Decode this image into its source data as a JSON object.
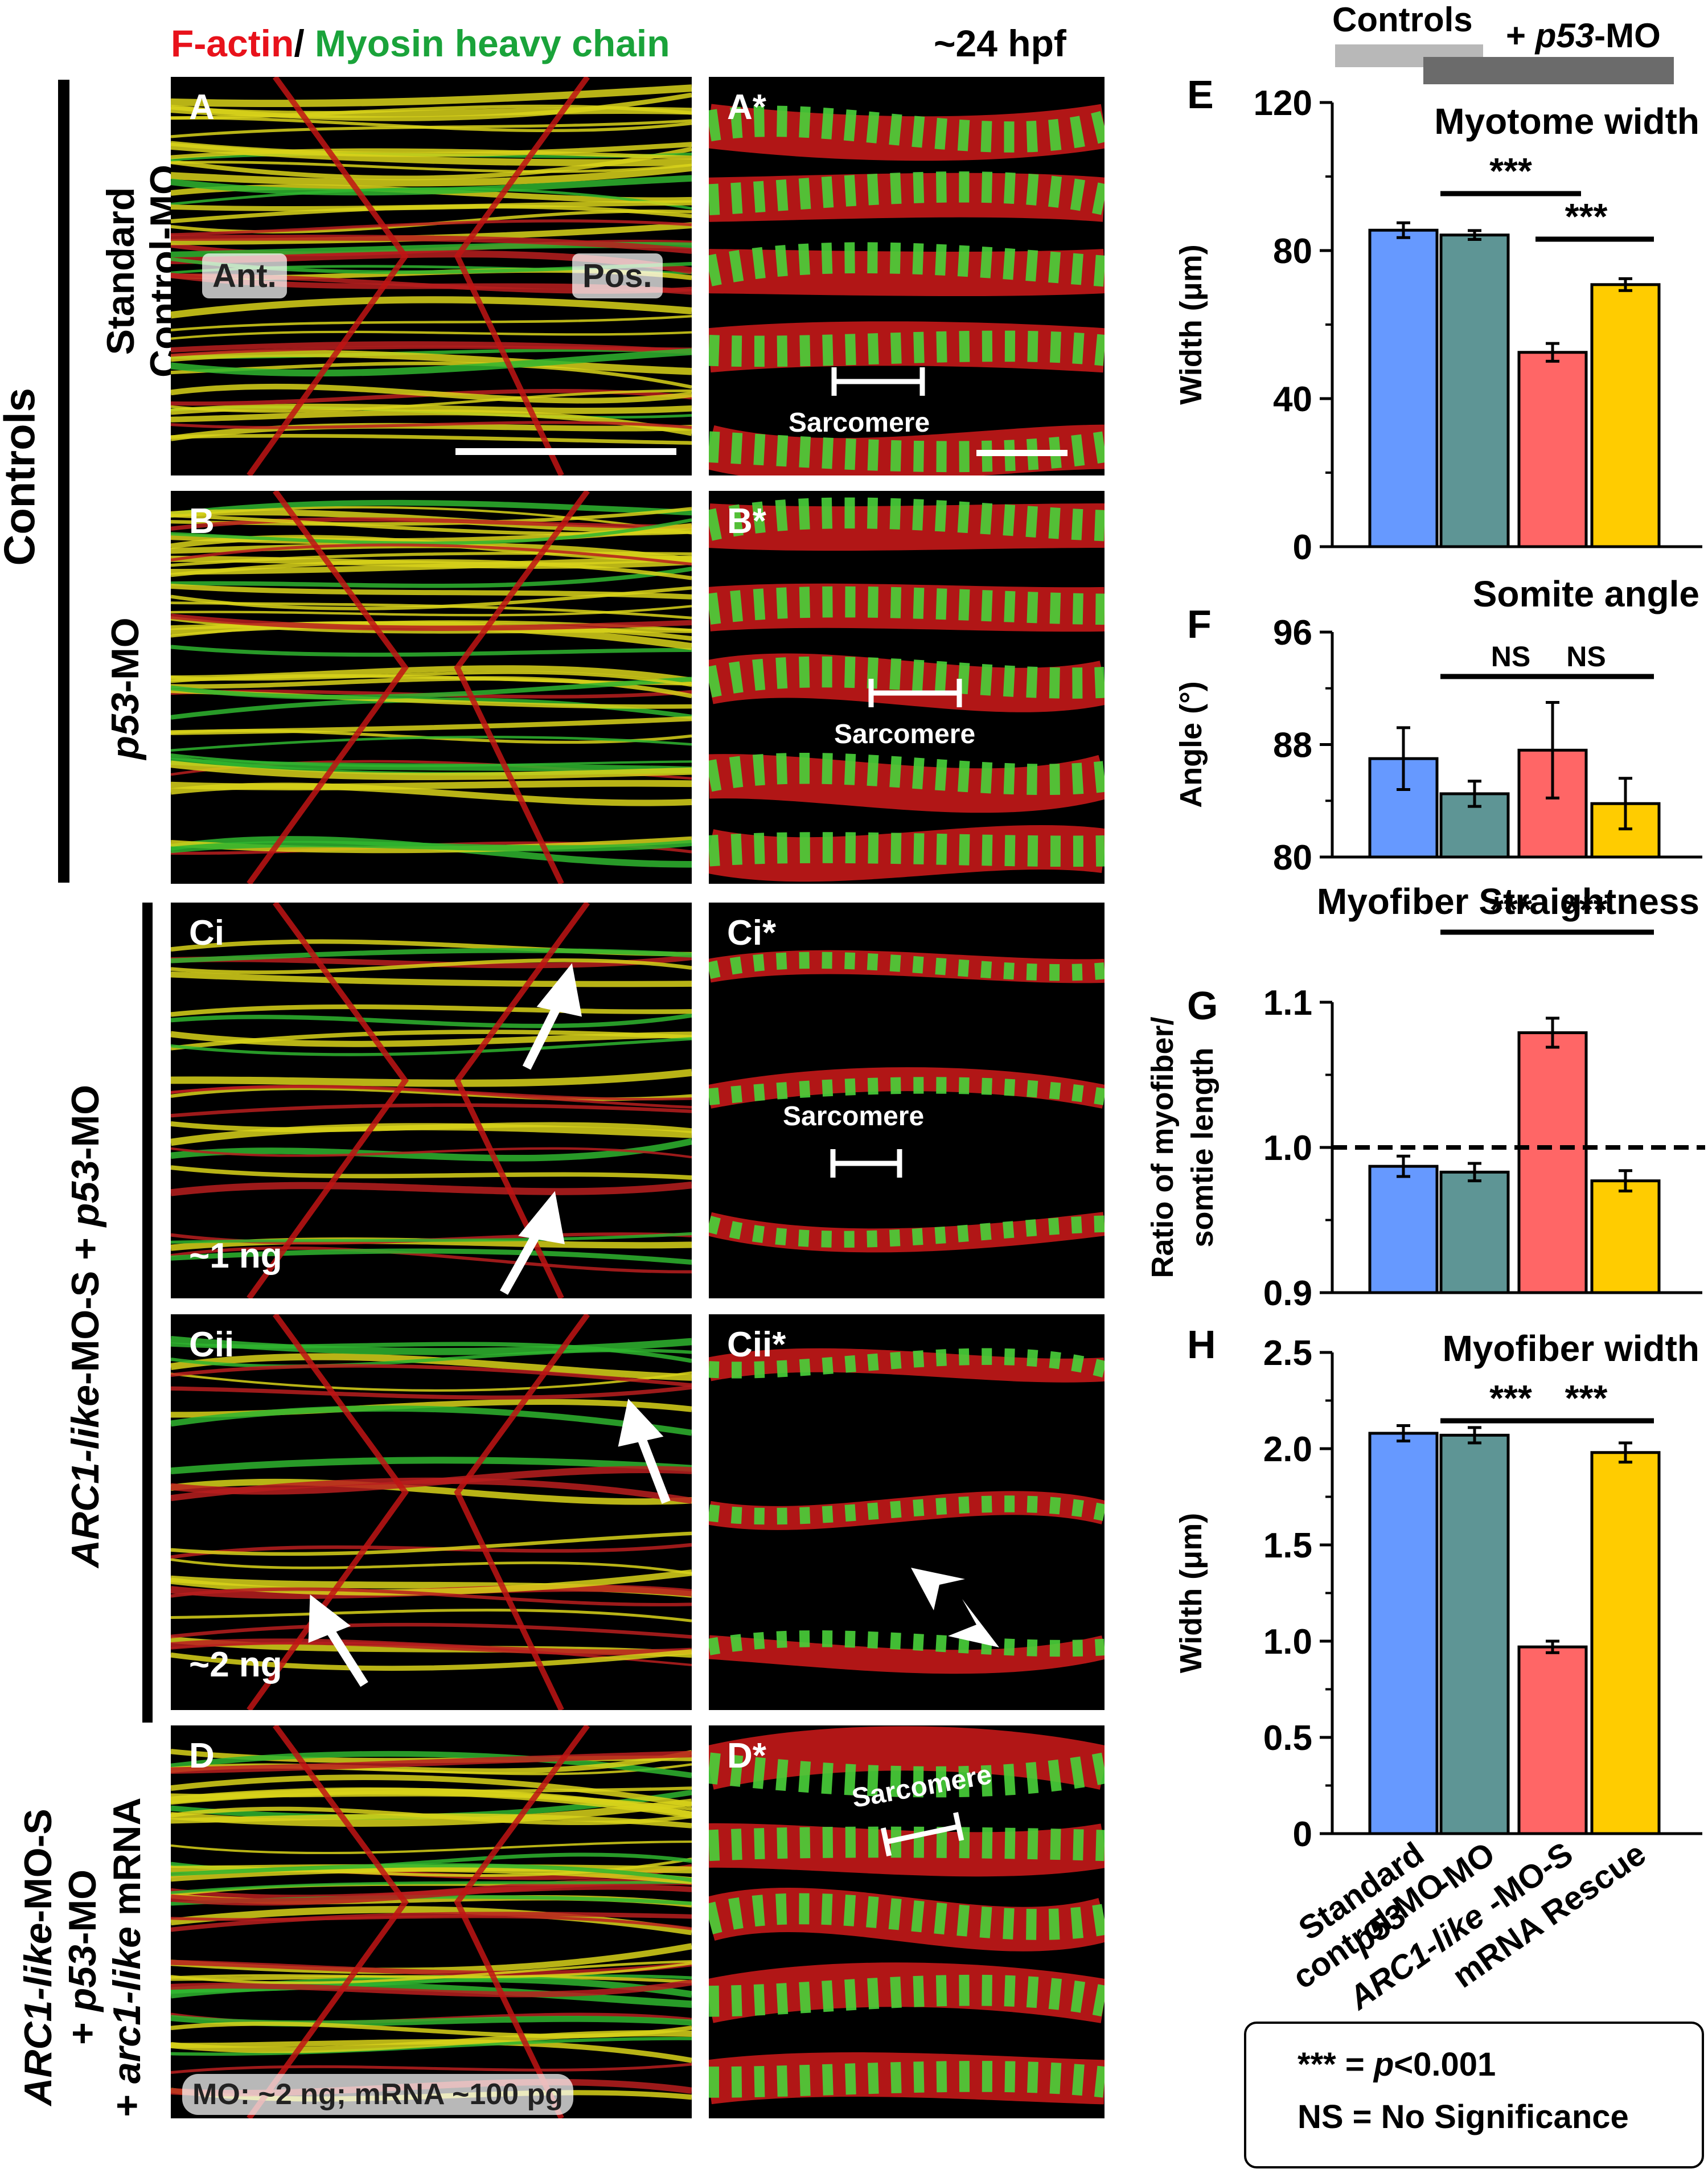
{
  "header": {
    "stain_red": "F-actin",
    "stain_sep": "/ ",
    "stain_green": "Myosin heavy chain",
    "stage": "~24 hpf",
    "colors": {
      "red": "#e8121b",
      "green": "#1aa33a"
    }
  },
  "group_bar": {
    "controls_label": "Controls",
    "p53_label_prefix": "+ ",
    "p53_label_italic": "p53",
    "p53_label_suffix": "-MO"
  },
  "side_labels": {
    "controls": "Controls",
    "standard_line1": "Standard",
    "standard_line2": "Control-MO",
    "p53_italic": "p53",
    "p53_rest": "-MO",
    "arc1_italic": "ARC1-like",
    "arc1_rest": "-MO-S + ",
    "arc1_p53_italic": "p53",
    "arc1_p53_rest": "-MO",
    "rescue_line1_italic": "ARC1-like",
    "rescue_line1_rest": "-MO-S",
    "rescue_line2_pre": "+ ",
    "rescue_line2_italic": "p53",
    "rescue_line2_rest": "-MO",
    "rescue_line3_pre": "+ ",
    "rescue_line3_italic": "arc1-like",
    "rescue_line3_rest": " mRNA"
  },
  "panels": {
    "A": "A",
    "A_star": "A*",
    "B": "B",
    "B_star": "B*",
    "Ci": "Ci",
    "Ci_star": "Ci*",
    "Cii": "Cii",
    "Cii_star": "Cii*",
    "D": "D",
    "D_star": "D*",
    "ant": "Ant.",
    "pos": "Pos.",
    "sarcomere": "Sarcomere",
    "dose_ci": "~1 ng",
    "dose_cii": "~2 ng",
    "dose_d": "MO: ~2 ng; mRNA ~100 pg"
  },
  "chart_data": [
    {
      "panel": "E",
      "type": "bar",
      "title": "Myotome width",
      "ylabel": "Width (μm)",
      "ylim": [
        0,
        120
      ],
      "yticks": [
        "0",
        "40",
        "80",
        "120"
      ],
      "categories": [
        "Standard control-MO",
        "p53-MO",
        "ARC1-like-MO-S",
        "mRNA Rescue"
      ],
      "values": [
        85.5,
        84.2,
        52.5,
        70.8
      ],
      "errors": [
        2.0,
        1.2,
        2.4,
        1.6
      ],
      "colors": [
        "#6699ff",
        "#5e9595",
        "#ff6666",
        "#ffcc00"
      ],
      "significance": [
        {
          "from": 1,
          "to": 2,
          "label": "***"
        },
        {
          "from": 2,
          "to": 3,
          "label": "***"
        }
      ]
    },
    {
      "panel": "F",
      "type": "bar",
      "title": "Somite angle",
      "ylabel": "Angle (°)",
      "ylim": [
        80,
        96
      ],
      "yticks": [
        "80",
        "88",
        "96"
      ],
      "categories": [
        "Standard control-MO",
        "p53-MO",
        "ARC1-like-MO-S",
        "mRNA Rescue"
      ],
      "values": [
        87.0,
        84.5,
        87.6,
        83.8
      ],
      "errors": [
        2.2,
        0.9,
        3.4,
        1.8
      ],
      "colors": [
        "#6699ff",
        "#5e9595",
        "#ff6666",
        "#ffcc00"
      ],
      "significance": [
        {
          "from": 1,
          "to": 2,
          "label": "NS"
        },
        {
          "from": 2,
          "to": 3,
          "label": "NS"
        }
      ]
    },
    {
      "panel": "G",
      "type": "bar",
      "title": "Myofiber Straightness",
      "ylabel_line1": "Ratio of myofiber/",
      "ylabel_line2": "somtie length",
      "ylim": [
        0.9,
        1.1
      ],
      "yticks": [
        "0.9",
        "1.0",
        "1.1"
      ],
      "reference_line": 1.0,
      "categories": [
        "Standard control-MO",
        "p53-MO",
        "ARC1-like-MO-S",
        "mRNA Rescue"
      ],
      "values": [
        0.987,
        0.983,
        1.079,
        0.977
      ],
      "errors": [
        0.007,
        0.006,
        0.01,
        0.007
      ],
      "colors": [
        "#6699ff",
        "#5e9595",
        "#ff6666",
        "#ffcc00"
      ],
      "significance": [
        {
          "from": 1,
          "to": 2,
          "label": "***"
        },
        {
          "from": 2,
          "to": 3,
          "label": "***"
        }
      ]
    },
    {
      "panel": "H",
      "type": "bar",
      "title": "Myofiber width",
      "ylabel": "Width (μm)",
      "ylim": [
        0,
        2.5
      ],
      "yticks": [
        "0",
        "0.5",
        "1.0",
        "1.5",
        "2.0",
        "2.5"
      ],
      "categories": [
        "Standard control-MO",
        "p53-MO",
        "ARC1-like-MO-S",
        "mRNA Rescue"
      ],
      "values": [
        2.08,
        2.07,
        0.97,
        1.98
      ],
      "errors": [
        0.04,
        0.04,
        0.03,
        0.05
      ],
      "colors": [
        "#6699ff",
        "#5e9595",
        "#ff6666",
        "#ffcc00"
      ],
      "significance": [
        {
          "from": 1,
          "to": 2,
          "label": "***"
        },
        {
          "from": 2,
          "to": 3,
          "label": "***"
        }
      ]
    }
  ],
  "x_tick_labels": [
    {
      "line1": "Standard",
      "line2": "control-MO",
      "italic": false
    },
    {
      "line1": "p53",
      "line2": "-MO",
      "italic": true
    },
    {
      "line1": "ARC1-like",
      "line2": "-MO-S",
      "italic": true
    },
    {
      "line1": "mRNA Rescue",
      "line2": "",
      "italic": false
    }
  ],
  "legend": {
    "line1_stars": "*** = ",
    "line1_p": "p",
    "line1_rest": "<0.001",
    "line2": "NS = No Significance"
  }
}
